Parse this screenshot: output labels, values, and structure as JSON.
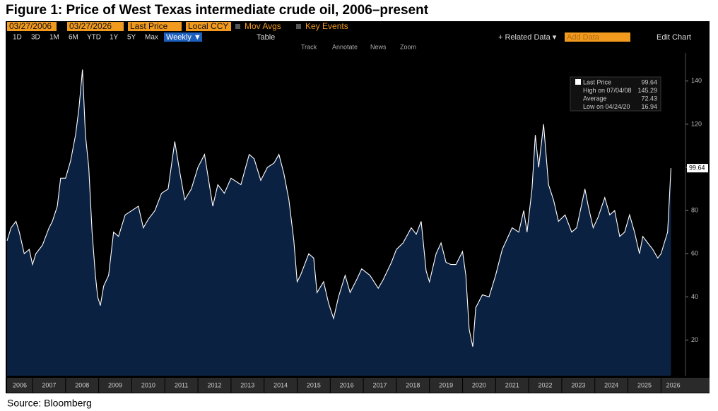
{
  "header": {
    "title": "Figure 1: Price of West Texas intermediate crude oil, 2006–present"
  },
  "toolbar": {
    "row1": [
      "03/27/2006",
      "03/27/2026",
      "Last Price",
      "Local CCY",
      "Mov Avgs",
      "Key Events"
    ],
    "periods": [
      "1D",
      "3D",
      "1M",
      "6M",
      "YTD",
      "1Y",
      "5Y",
      "Max"
    ],
    "frequency": "Weekly ▼",
    "table": "Table",
    "related": "+ Related Data ▾",
    "add": "Add Data",
    "edit": "Edit Chart",
    "tools": [
      "Track",
      "Annotate",
      "News",
      "Zoom"
    ]
  },
  "chart_data": {
    "type": "area",
    "color": "#ffffff",
    "fill": "#0b2142",
    "x": [
      2006.23,
      2006.35,
      2006.5,
      2006.6,
      2006.75,
      2006.9,
      2007.0,
      2007.1,
      2007.3,
      2007.5,
      2007.6,
      2007.75,
      2007.85,
      2008.0,
      2008.15,
      2008.3,
      2008.4,
      2008.51,
      2008.6,
      2008.7,
      2008.8,
      2008.9,
      2008.97,
      2009.05,
      2009.15,
      2009.3,
      2009.45,
      2009.6,
      2009.8,
      2010.0,
      2010.2,
      2010.35,
      2010.5,
      2010.7,
      2010.9,
      2011.1,
      2011.3,
      2011.45,
      2011.6,
      2011.8,
      2012.0,
      2012.2,
      2012.45,
      2012.6,
      2012.8,
      2013.0,
      2013.3,
      2013.55,
      2013.7,
      2013.9,
      2014.1,
      2014.3,
      2014.45,
      2014.6,
      2014.75,
      2014.9,
      2015.0,
      2015.1,
      2015.35,
      2015.5,
      2015.6,
      2015.8,
      2015.95,
      2016.1,
      2016.25,
      2016.45,
      2016.6,
      2016.8,
      2016.95,
      2017.2,
      2017.45,
      2017.6,
      2017.85,
      2018.0,
      2018.2,
      2018.45,
      2018.6,
      2018.75,
      2018.9,
      2019.0,
      2019.2,
      2019.35,
      2019.5,
      2019.65,
      2019.8,
      2020.0,
      2020.1,
      2020.2,
      2020.31,
      2020.4,
      2020.6,
      2020.8,
      2021.0,
      2021.2,
      2021.5,
      2021.7,
      2021.85,
      2021.95,
      2022.1,
      2022.2,
      2022.3,
      2022.45,
      2022.6,
      2022.75,
      2022.9,
      2023.1,
      2023.3,
      2023.45,
      2023.7,
      2023.8,
      2023.95,
      2024.1,
      2024.3,
      2024.45,
      2024.6,
      2024.75,
      2024.9,
      2025.05,
      2025.2,
      2025.35,
      2025.45,
      2025.6,
      2025.75,
      2025.9,
      2026.0,
      2026.1,
      2026.2,
      2026.25,
      2026.3
    ],
    "values": [
      66,
      72,
      75,
      70,
      60,
      62,
      55,
      60,
      64,
      72,
      75,
      82,
      95,
      95,
      103,
      115,
      127,
      145.29,
      115,
      100,
      70,
      50,
      40,
      36,
      45,
      50,
      70,
      68,
      78,
      80,
      82,
      72,
      76,
      80,
      88,
      90,
      112,
      98,
      85,
      90,
      100,
      106,
      82,
      92,
      88,
      95,
      92,
      106,
      104,
      94,
      100,
      102,
      106,
      97,
      85,
      66,
      47,
      50,
      60,
      58,
      42,
      47,
      37,
      30,
      40,
      50,
      42,
      48,
      53,
      50,
      44,
      48,
      56,
      62,
      65,
      72,
      69,
      75,
      52,
      47,
      60,
      65,
      56,
      55,
      55,
      61,
      50,
      25,
      16.94,
      35,
      41,
      40,
      50,
      62,
      72,
      70,
      80,
      70,
      90,
      115,
      100,
      120,
      92,
      85,
      75,
      78,
      70,
      72,
      90,
      82,
      72,
      77,
      86,
      78,
      80,
      68,
      70,
      78,
      70,
      60,
      68,
      65,
      62,
      58,
      60,
      65,
      70,
      85,
      99.64
    ],
    "xlim": [
      2006.23,
      2026.74
    ],
    "xticks": [
      2006,
      2007,
      2008,
      2009,
      2010,
      2011,
      2012,
      2013,
      2014,
      2015,
      2016,
      2017,
      2018,
      2019,
      2020,
      2021,
      2022,
      2023,
      2024,
      2025,
      2026
    ],
    "ylim": [
      3.5,
      153
    ],
    "yticks": [
      20,
      40,
      60,
      80,
      100,
      120,
      140
    ],
    "grid": false,
    "annotations": [
      {
        "label": "Last Price",
        "value": 99.64
      },
      {
        "label": "High on 07/04/08",
        "value": 145.29
      },
      {
        "label": "Average",
        "value": 72.43
      },
      {
        "label": "Low on 04/24/20",
        "value": 16.94
      }
    ]
  },
  "footer": {
    "source": "Source: Bloomberg"
  }
}
